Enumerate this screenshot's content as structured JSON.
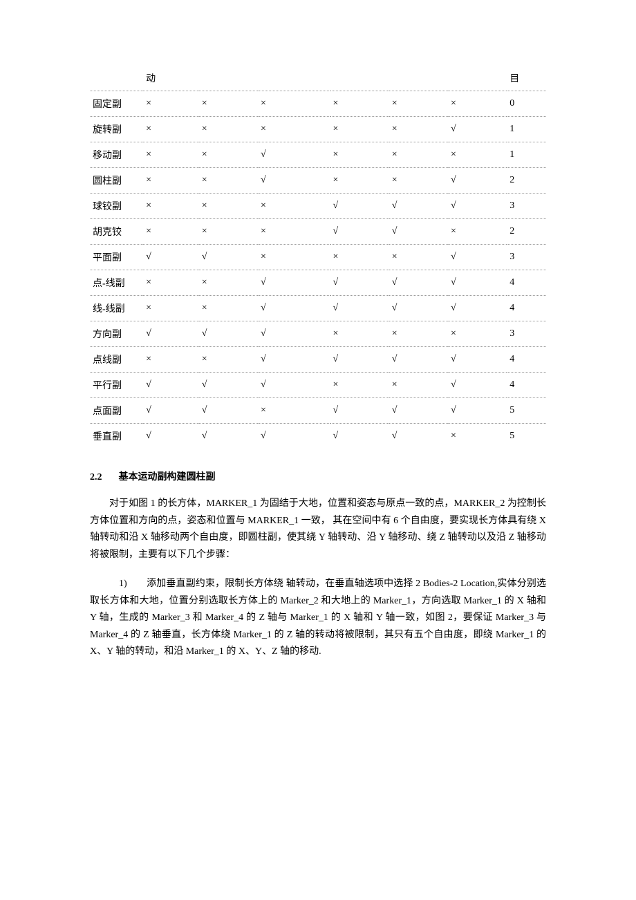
{
  "table": {
    "header": [
      "",
      "动",
      "",
      "",
      "",
      "",
      "",
      "目"
    ],
    "rows": [
      [
        "固定副",
        "×",
        "×",
        "×",
        "×",
        "×",
        "×",
        "0"
      ],
      [
        "旋转副",
        "×",
        "×",
        "×",
        "×",
        "×",
        "√",
        "1"
      ],
      [
        "移动副",
        "×",
        "×",
        "√",
        "×",
        "×",
        "×",
        "1"
      ],
      [
        "圆柱副",
        "×",
        "×",
        "√",
        "×",
        "×",
        "√",
        "2"
      ],
      [
        "球铰副",
        "×",
        "×",
        "×",
        "√",
        "√",
        "√",
        "3"
      ],
      [
        "胡克铰",
        "×",
        "×",
        "×",
        "√",
        "√",
        "×",
        "2"
      ],
      [
        "平面副",
        "√",
        "√",
        "×",
        "×",
        "×",
        "√",
        "3"
      ],
      [
        "点-线副",
        "×",
        "×",
        "√",
        "√",
        "√",
        "√",
        "4"
      ],
      [
        "线-线副",
        "×",
        "×",
        "√",
        "√",
        "√",
        "√",
        "4"
      ],
      [
        "方向副",
        "√",
        "√",
        "√",
        "×",
        "×",
        "×",
        "3"
      ],
      [
        "点线副",
        "×",
        "×",
        "√",
        "√",
        "√",
        "√",
        "4"
      ],
      [
        "平行副",
        "√",
        "√",
        "√",
        "×",
        "×",
        "√",
        "4"
      ],
      [
        "点面副",
        "√",
        "√",
        "×",
        "√",
        "√",
        "√",
        "5"
      ],
      [
        "垂直副",
        "√",
        "√",
        "√",
        "√",
        "√",
        "×",
        " 5"
      ]
    ]
  },
  "section": {
    "num": "2.2",
    "title": "基本运动副构建圆柱副"
  },
  "para1": "对于如图 1 的长方体，MARKER_1 为固结于大地，位置和姿态与原点一致的点，MARKER_2 为控制长方体位置和方向的点，姿态和位置与 MARKER_1 一致，  其在空间中有 6 个自由度，要实现长方体具有绕 X 轴转动和沿 X 轴移动两个自由度，即圆柱副，使其绕 Y 轴转动、沿 Y 轴移动、绕 Z 轴转动以及沿 Z 轴移动将被限制，主要有以下几个步骤：",
  "para2_lead": "1)　　添加垂直副约束，限制长方体绕  轴转动，在垂直轴选项中选择 2 Bodies-2 Location,实体分别选取长方体和大地，位置分别选取长方体上的 Marker_2 和大地上的 Marker_1，方向选取 Marker_1 的 X 轴和 Y 轴，生成的 Marker_3 和 Marker_4 的 Z 轴与 Marker_1 的 X 轴和 Y 轴一致，如图 2，要保证 Marker_3 与 Marker_4 的 Z 轴垂直，长方体绕 Marker_1 的 Z 轴的转动将被限制，其只有五个自由度，即绕 Marker_1 的 X、Y 轴的转动，和沿 Marker_1 的 X、Y、Z 轴的移动."
}
